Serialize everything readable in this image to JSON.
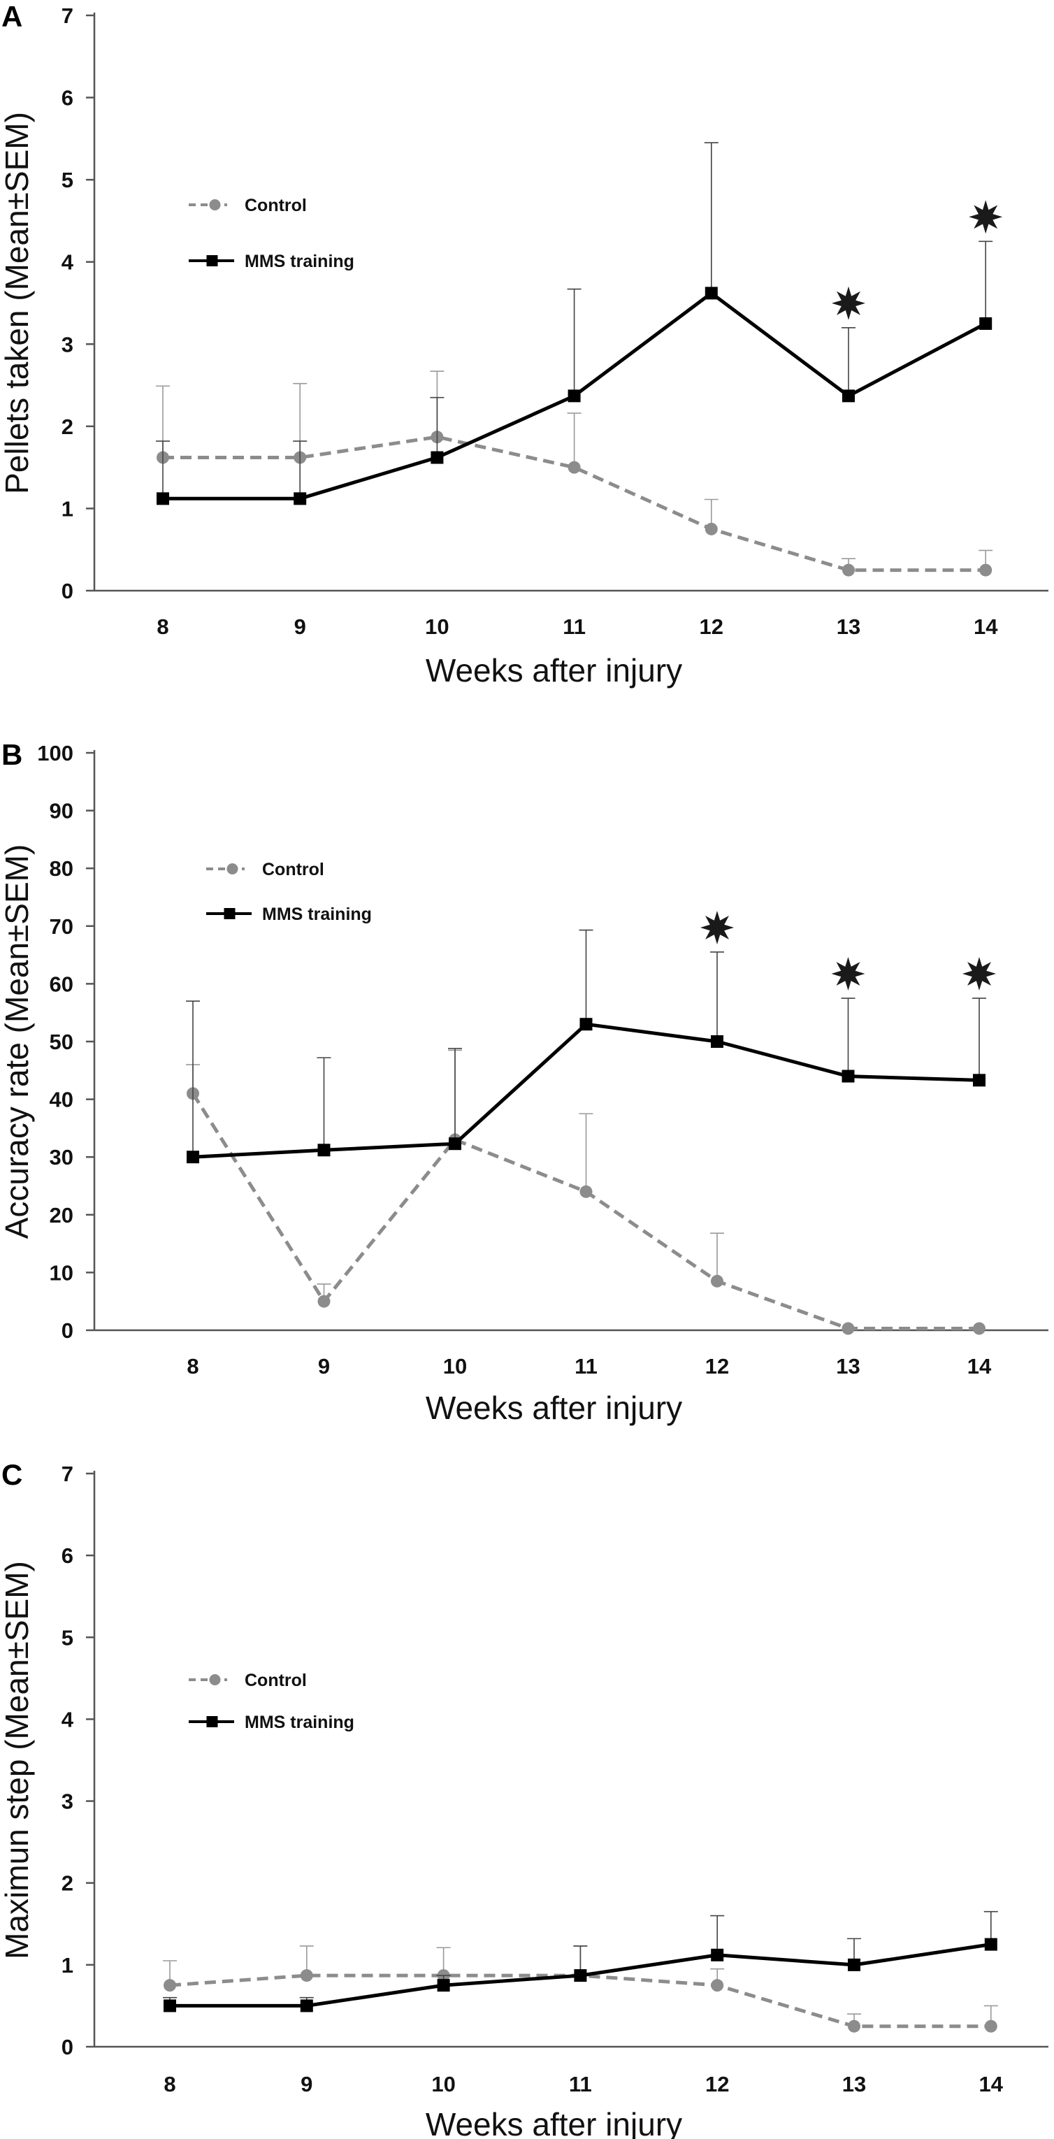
{
  "chart_data": [
    {
      "panel": "A",
      "type": "line",
      "xlabel": "Weeks after injury",
      "ylabel": "Pellets taken (Mean±SEM)",
      "categories": [
        "8",
        "9",
        "10",
        "11",
        "12",
        "13",
        "14"
      ],
      "ylim": [
        0,
        7
      ],
      "yticks": [
        "0",
        "1",
        "2",
        "3",
        "4",
        "5",
        "6",
        "7"
      ],
      "ytick_values": [
        0,
        1,
        2,
        3,
        4,
        5,
        6,
        7
      ],
      "series": [
        {
          "name": "Control",
          "style": "dashed",
          "marker": "circle",
          "color": "#8c8c8c",
          "values": [
            1.62,
            1.62,
            1.87,
            1.5,
            0.75,
            0.25,
            0.25
          ],
          "error": [
            0.87,
            0.9,
            0.8,
            0.66,
            0.36,
            0.14,
            0.24
          ]
        },
        {
          "name": "MMS training",
          "style": "solid",
          "marker": "square",
          "color": "#000000",
          "values": [
            1.12,
            1.12,
            1.62,
            2.37,
            3.62,
            2.37,
            3.25
          ],
          "error": [
            0.7,
            0.7,
            0.73,
            1.3,
            1.83,
            0.83,
            1.0
          ]
        }
      ],
      "significance_at": [
        "13",
        "14"
      ]
    },
    {
      "panel": "B",
      "type": "line",
      "xlabel": "Weeks after injury",
      "ylabel": "Accuracy rate (Mean±SEM)",
      "categories": [
        "8",
        "9",
        "10",
        "11",
        "12",
        "13",
        "14"
      ],
      "ylim": [
        0,
        100
      ],
      "yticks": [
        "0",
        "10",
        "20",
        "30",
        "40",
        "50",
        "60",
        "70",
        "80",
        "90",
        "100"
      ],
      "ytick_values": [
        0,
        10,
        20,
        30,
        40,
        50,
        60,
        70,
        80,
        90,
        100
      ],
      "series": [
        {
          "name": "Control",
          "style": "dashed",
          "marker": "circle",
          "color": "#8c8c8c",
          "values": [
            41,
            5,
            33,
            24,
            8.5,
            0.3,
            0.3
          ],
          "error": [
            5,
            3,
            15.5,
            13.5,
            8.3,
            0,
            0
          ]
        },
        {
          "name": "MMS training",
          "style": "solid",
          "marker": "square",
          "color": "#000000",
          "values": [
            30,
            31.2,
            32.3,
            53,
            50,
            44,
            43.3
          ],
          "error": [
            27,
            16,
            16.5,
            16.3,
            15.5,
            13.5,
            14.2
          ]
        }
      ],
      "significance_at": [
        "12",
        "13",
        "14"
      ]
    },
    {
      "panel": "C",
      "type": "line",
      "xlabel": "Weeks after injury",
      "ylabel": "Maximun step (Mean±SEM)",
      "categories": [
        "8",
        "9",
        "10",
        "11",
        "12",
        "13",
        "14"
      ],
      "ylim": [
        0,
        7
      ],
      "yticks": [
        "0",
        "1",
        "2",
        "3",
        "4",
        "5",
        "6",
        "7"
      ],
      "ytick_values": [
        0,
        1,
        2,
        3,
        4,
        5,
        6,
        7
      ],
      "series": [
        {
          "name": "Control",
          "style": "dashed",
          "marker": "circle",
          "color": "#8c8c8c",
          "values": [
            0.75,
            0.87,
            0.87,
            0.87,
            0.75,
            0.25,
            0.25
          ],
          "error": [
            0.3,
            0.36,
            0.34,
            0.36,
            0.2,
            0.15,
            0.25
          ]
        },
        {
          "name": "MMS training",
          "style": "solid",
          "marker": "square",
          "color": "#000000",
          "values": [
            0.5,
            0.5,
            0.75,
            0.87,
            1.12,
            1.0,
            1.25
          ],
          "error": [
            0.1,
            0.1,
            0.12,
            0.36,
            0.48,
            0.32,
            0.4
          ]
        }
      ],
      "significance_at": []
    }
  ]
}
